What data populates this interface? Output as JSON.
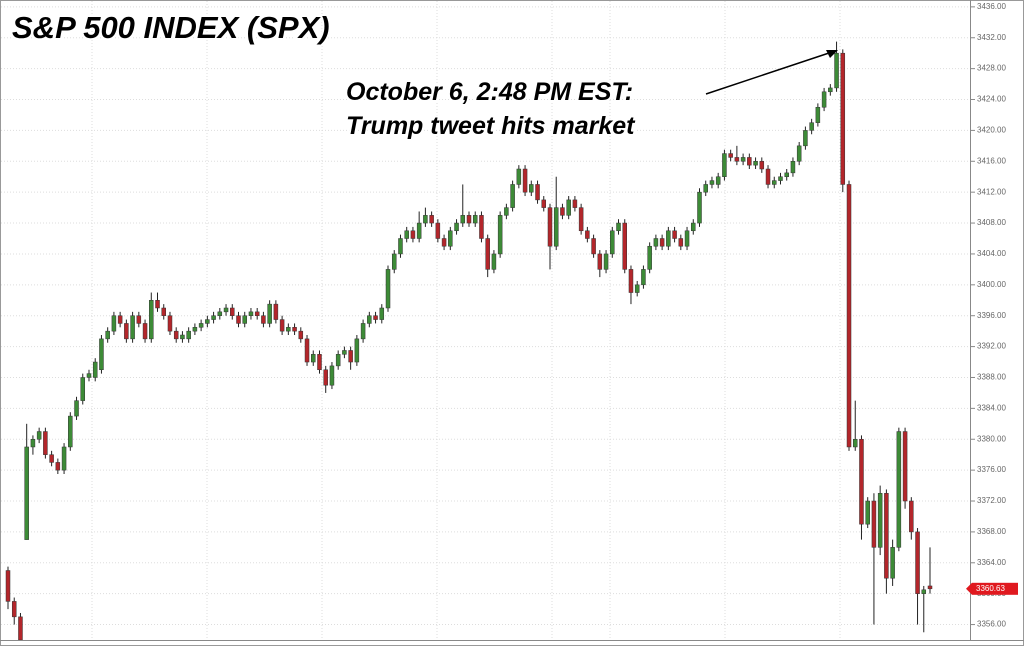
{
  "chart_data": {
    "type": "candlestick",
    "title": "S&P 500 INDEX  (SPX)",
    "annotation": [
      "October 6, 2:48 PM EST:",
      "Trump tweet hits market"
    ],
    "ylim": [
      3354,
      3436.5
    ],
    "yticks": [
      {
        "value": 3356,
        "label": "3356.00"
      },
      {
        "value": 3360,
        "label": "3360.00"
      },
      {
        "value": 3364,
        "label": "3364.00"
      },
      {
        "value": 3368,
        "label": "3368.00"
      },
      {
        "value": 3372,
        "label": "3372.00"
      },
      {
        "value": 3376,
        "label": "3376.00"
      },
      {
        "value": 3380,
        "label": "3380.00"
      },
      {
        "value": 3384,
        "label": "3384.00"
      },
      {
        "value": 3388,
        "label": "3388.00"
      },
      {
        "value": 3392,
        "label": "3392.00"
      },
      {
        "value": 3396,
        "label": "3396.00"
      },
      {
        "value": 3400,
        "label": "3400.00"
      },
      {
        "value": 3404,
        "label": "3404.00"
      },
      {
        "value": 3408,
        "label": "3408.00"
      },
      {
        "value": 3412,
        "label": "3412.00"
      },
      {
        "value": 3416,
        "label": "3416.00"
      },
      {
        "value": 3420,
        "label": "3420.00"
      },
      {
        "value": 3424,
        "label": "3424.00"
      },
      {
        "value": 3428,
        "label": "3428.00"
      },
      {
        "value": 3432,
        "label": "3432.00"
      },
      {
        "value": 3436,
        "label": "3436.00"
      }
    ],
    "grid": true,
    "up_color": "#3d8b37",
    "down_color": "#b3262b",
    "open": [
      3363,
      3359,
      3357,
      3367,
      3379,
      3380,
      3381,
      3378,
      3377,
      3376,
      3379,
      3383,
      3385,
      3388,
      3388,
      3389,
      3393,
      3394,
      3396,
      3395,
      3393,
      3396,
      3395,
      3393,
      3398,
      3397,
      3396,
      3394,
      3393,
      3393,
      3394,
      3394.5,
      3395,
      3395.5,
      3396,
      3396.5,
      3397,
      3396,
      3395,
      3396,
      3396.5,
      3396,
      3395,
      3397.5,
      3395.5,
      3394,
      3394.5,
      3394,
      3393,
      3390,
      3391,
      3389,
      3387,
      3389.5,
      3391,
      3391.5,
      3390,
      3393,
      3395,
      3396,
      3395.5,
      3397,
      3402,
      3404,
      3406,
      3407,
      3406,
      3408,
      3409,
      3408,
      3406,
      3405,
      3407,
      3408,
      3409,
      3408,
      3409,
      3406,
      3402,
      3404,
      3409,
      3410,
      3413,
      3415,
      3412,
      3413,
      3411,
      3410,
      3405,
      3410,
      3409,
      3411,
      3410,
      3407,
      3406,
      3404,
      3402,
      3404,
      3407,
      3408,
      3402,
      3399,
      3400,
      3402,
      3405,
      3406,
      3405,
      3407,
      3406,
      3405,
      3407,
      3408,
      3412,
      3413,
      3413,
      3414,
      3417,
      3416.5,
      3416,
      3416.5,
      3415.5,
      3416,
      3415,
      3413,
      3413.5,
      3414,
      3414.5,
      3416,
      3418,
      3420,
      3421,
      3423,
      3425,
      3425.5,
      3430,
      3413,
      3379,
      3380,
      3369,
      3372,
      3366,
      3373,
      3362,
      3366,
      3381,
      3372,
      3368,
      3360,
      3361
    ],
    "high": [
      3363.5,
      3359.5,
      3357.5,
      3382,
      3380.5,
      3381.5,
      3381.5,
      3378.5,
      3377.5,
      3379.5,
      3383.5,
      3385.5,
      3388.5,
      3389,
      3390.5,
      3393.5,
      3394.5,
      3396.5,
      3396.5,
      3395.5,
      3396.5,
      3396.5,
      3395.5,
      3399,
      3399,
      3397.5,
      3396.5,
      3394.5,
      3394,
      3394.5,
      3395,
      3395.5,
      3396,
      3396.5,
      3397,
      3397.5,
      3397.5,
      3396.5,
      3396.5,
      3397,
      3397,
      3396.5,
      3398,
      3398,
      3396,
      3395,
      3395,
      3394.5,
      3393.5,
      3391.5,
      3391.5,
      3389.5,
      3390,
      3391.5,
      3392,
      3392,
      3393.5,
      3395.5,
      3396.5,
      3396.5,
      3397.5,
      3402.5,
      3404.5,
      3406.5,
      3407.5,
      3407.5,
      3409.5,
      3410,
      3409.5,
      3408.5,
      3406.5,
      3407.5,
      3408.5,
      3413,
      3409.5,
      3409.5,
      3409.5,
      3406.5,
      3404.5,
      3409.5,
      3410.5,
      3413.5,
      3415.5,
      3415.5,
      3413.5,
      3413.5,
      3411.5,
      3410.5,
      3414,
      3410.5,
      3411.5,
      3411.5,
      3410.5,
      3407.5,
      3406.5,
      3404.5,
      3404.5,
      3407.5,
      3408.5,
      3408.5,
      3402.5,
      3400.5,
      3402.5,
      3405.5,
      3406.5,
      3406.5,
      3407.5,
      3407.5,
      3406.5,
      3407.5,
      3408.5,
      3412.5,
      3413.5,
      3414,
      3414.5,
      3417.5,
      3417.5,
      3418,
      3417,
      3417,
      3416.5,
      3416.5,
      3415.5,
      3414,
      3414.5,
      3415,
      3416.5,
      3418.5,
      3420.5,
      3421.5,
      3423.5,
      3425.5,
      3426,
      3431.5,
      3430.5,
      3413.5,
      3385,
      3380.5,
      3372.5,
      3373,
      3374,
      3373.5,
      3367,
      3381.5,
      3381.5,
      3372.5,
      3368.5,
      3361,
      3366
    ],
    "low": [
      3358,
      3356,
      3353,
      3367,
      3378,
      3379.5,
      3377.5,
      3376.5,
      3375.5,
      3375.5,
      3378.5,
      3382.5,
      3384.5,
      3387.5,
      3387.5,
      3388.5,
      3392.5,
      3393.5,
      3394.5,
      3392.5,
      3392.5,
      3394.5,
      3392.5,
      3392.5,
      3396.5,
      3395.5,
      3393.5,
      3392.5,
      3392.5,
      3392.5,
      3393.5,
      3394,
      3394.5,
      3395,
      3395.5,
      3396,
      3395.5,
      3394.5,
      3394.5,
      3395.5,
      3395.5,
      3394.5,
      3394.5,
      3395,
      3393.5,
      3393.5,
      3393.5,
      3392.5,
      3389.5,
      3389.5,
      3388.5,
      3386,
      3386.5,
      3389,
      3390.5,
      3389,
      3389.5,
      3392.5,
      3394.5,
      3395,
      3395,
      3396.5,
      3401.5,
      3403.5,
      3405.5,
      3405.5,
      3405.5,
      3407.5,
      3407.5,
      3405.5,
      3404.5,
      3404.5,
      3406.5,
      3407.5,
      3407.5,
      3407.5,
      3405.5,
      3401,
      3401.5,
      3403.5,
      3408.5,
      3409.5,
      3412.5,
      3411.5,
      3411.5,
      3410.5,
      3409.5,
      3402,
      3404.5,
      3408.5,
      3408.5,
      3409.5,
      3406.5,
      3405.5,
      3403.5,
      3401,
      3401.5,
      3403.5,
      3406.5,
      3401.5,
      3397.5,
      3398.5,
      3399.5,
      3401.5,
      3404.5,
      3404.5,
      3404.5,
      3405.5,
      3404.5,
      3404.5,
      3406.5,
      3407.5,
      3411.5,
      3412.5,
      3412.5,
      3413.5,
      3416,
      3415.5,
      3415.5,
      3415,
      3415,
      3414.5,
      3412.5,
      3412.5,
      3413,
      3413.5,
      3414,
      3415.5,
      3417.5,
      3419.5,
      3420.5,
      3422.5,
      3424.5,
      3425,
      3412,
      3378.5,
      3378.5,
      3367,
      3368.5,
      3356,
      3365,
      3360,
      3361,
      3365.5,
      3371,
      3367,
      3356,
      3355,
      3360
    ],
    "close": [
      3359,
      3357,
      3354,
      3379,
      3380,
      3381,
      3378,
      3377,
      3376,
      3379,
      3383,
      3385,
      3388,
      3388.5,
      3390,
      3393,
      3394,
      3396,
      3395,
      3393,
      3396,
      3395,
      3393,
      3398,
      3397,
      3396,
      3394,
      3393,
      3393.5,
      3394,
      3394.5,
      3395,
      3395.5,
      3396,
      3396.5,
      3397,
      3396,
      3395,
      3396,
      3396.5,
      3396,
      3395,
      3397.5,
      3395.5,
      3394,
      3394.5,
      3394,
      3393,
      3390,
      3391,
      3389,
      3387,
      3389.5,
      3391,
      3391.5,
      3390,
      3393,
      3395,
      3396,
      3395.5,
      3397,
      3402,
      3404,
      3406,
      3407,
      3406,
      3408,
      3409,
      3408,
      3406,
      3405,
      3407,
      3408,
      3409,
      3408,
      3409,
      3406,
      3402,
      3404,
      3409,
      3410,
      3413,
      3415,
      3412,
      3413,
      3411,
      3410,
      3405,
      3410,
      3409,
      3411,
      3410,
      3407,
      3406,
      3404,
      3402,
      3404,
      3407,
      3408,
      3402,
      3399,
      3400,
      3402,
      3405,
      3406,
      3405,
      3407,
      3406,
      3405,
      3407,
      3408,
      3412,
      3413,
      3413.5,
      3414,
      3417,
      3416.5,
      3416,
      3416.5,
      3415.5,
      3416,
      3415,
      3413,
      3413.5,
      3414,
      3414.5,
      3416,
      3418,
      3420,
      3421,
      3423,
      3425,
      3425.5,
      3430,
      3413,
      3379,
      3380,
      3369,
      3372,
      3366,
      3373,
      3362,
      3366,
      3381,
      3372,
      3368,
      3360,
      3360.5,
      3360.63
    ]
  }
}
